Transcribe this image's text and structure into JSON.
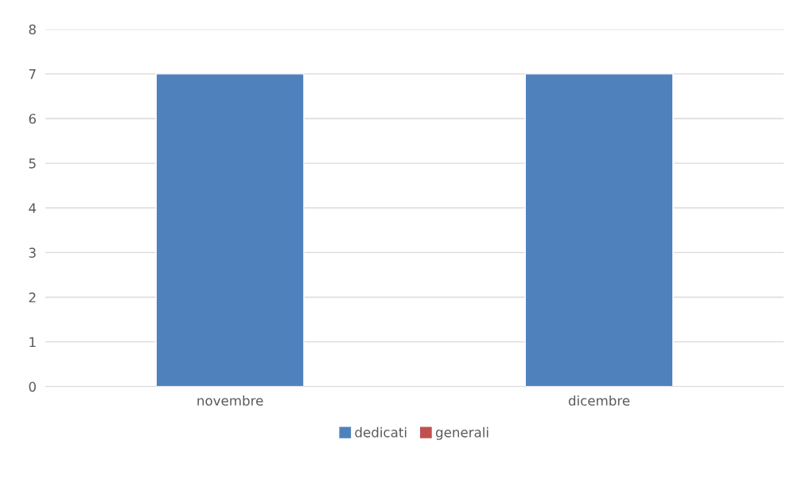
{
  "chart_data": {
    "type": "bar",
    "categories": [
      "novembre",
      "dicembre"
    ],
    "series": [
      {
        "name": "dedicati",
        "color": "#4f81bd",
        "values": [
          7,
          7
        ]
      },
      {
        "name": "generali",
        "color": "#c0504d",
        "values": [
          null,
          null
        ]
      }
    ],
    "stacked": true,
    "ylim": [
      0,
      8
    ],
    "yticks": [
      0,
      1,
      2,
      3,
      4,
      5,
      6,
      7,
      8
    ],
    "grid": "y",
    "legend": "bottom"
  }
}
